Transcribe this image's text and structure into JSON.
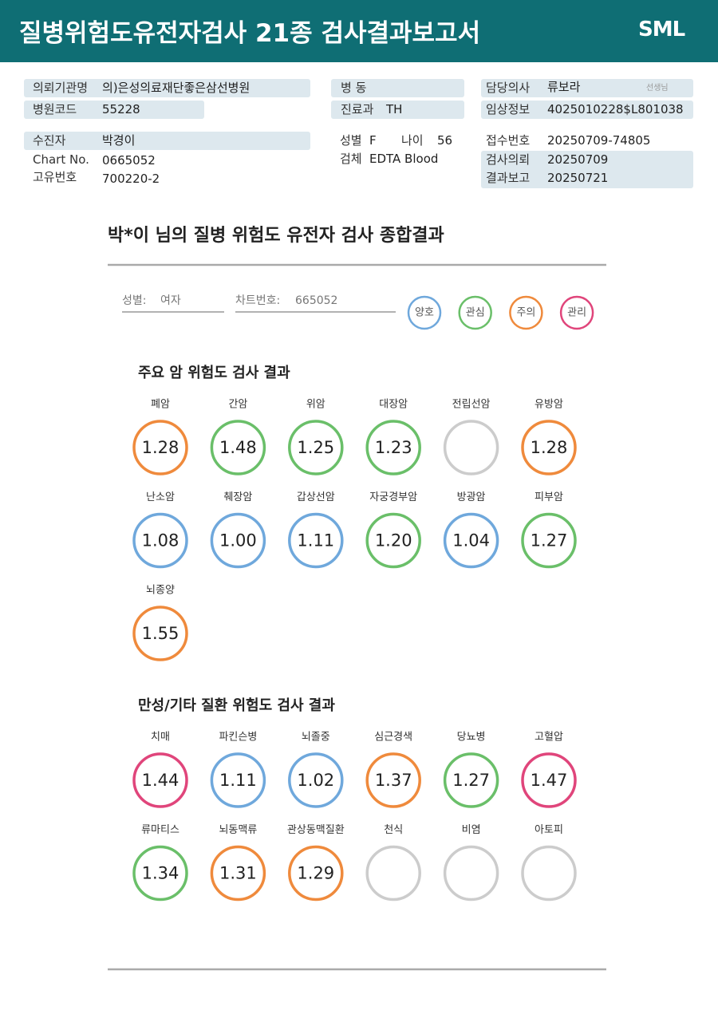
{
  "header": {
    "title": "질병위험도유전자검사 21종 검사결과보고서",
    "logo": "SML"
  },
  "info": {
    "institution": {
      "label": "의뢰기관명",
      "value": "의)은성의료재단좋은삼선병원"
    },
    "hospital_code": {
      "label": "병원코드",
      "value": "55228"
    },
    "patient": {
      "label": "수진자",
      "value": "박경이"
    },
    "chart_no": {
      "label": "Chart No.",
      "value": "0665052"
    },
    "unique_no": {
      "label": "고유번호",
      "value": "700220-2"
    },
    "ward": {
      "label": "병 동"
    },
    "department": {
      "label": "진료과",
      "value": "TH"
    },
    "sex": {
      "label": "성별",
      "value": "F"
    },
    "age": {
      "label": "나이",
      "value": "56"
    },
    "specimen": {
      "label": "검체",
      "value": "EDTA Blood"
    },
    "doctor": {
      "label": "담당의사",
      "value": "류보라",
      "suffix": "선생님"
    },
    "clinical": {
      "label": "임상정보",
      "value": "4025010228$L801038"
    },
    "receipt_no": {
      "label": "접수번호",
      "value": "20250709-74805"
    },
    "requested": {
      "label": "검사의뢰",
      "value": "20250709"
    },
    "reported": {
      "label": "결과보고",
      "value": "20250721"
    }
  },
  "report": {
    "title": "박*이 님의 질병 위험도 유전자 검사 종합결과",
    "summary": [
      {
        "label": "성별:",
        "value": "여자"
      },
      {
        "label": "차트번호:",
        "value": "665052"
      }
    ],
    "legend": [
      {
        "name": "양호",
        "color": "#6fa8dc"
      },
      {
        "name": "관심",
        "color": "#6abf69"
      },
      {
        "name": "주의",
        "color": "#ef8a3c"
      },
      {
        "name": "관리",
        "color": "#e0457b"
      }
    ],
    "groups": [
      {
        "title": "주요 암 위험도 검사 결과",
        "items": [
          {
            "name": "폐암",
            "value": "1.28",
            "color": "#ef8a3c"
          },
          {
            "name": "간암",
            "value": "1.48",
            "color": "#6abf69"
          },
          {
            "name": "위암",
            "value": "1.25",
            "color": "#6abf69"
          },
          {
            "name": "대장암",
            "value": "1.23",
            "color": "#6abf69"
          },
          {
            "name": "전립선암",
            "color": "#cccccc"
          },
          {
            "name": "유방암",
            "value": "1.28",
            "color": "#ef8a3c"
          },
          {
            "name": "난소암",
            "value": "1.08",
            "color": "#6fa8dc"
          },
          {
            "name": "췌장암",
            "value": "1.00",
            "color": "#6fa8dc"
          },
          {
            "name": "갑상선암",
            "value": "1.11",
            "color": "#6fa8dc"
          },
          {
            "name": "자궁경부암",
            "value": "1.20",
            "color": "#6abf69"
          },
          {
            "name": "방광암",
            "value": "1.04",
            "color": "#6fa8dc"
          },
          {
            "name": "피부암",
            "value": "1.27",
            "color": "#6abf69"
          },
          {
            "name": "뇌종양",
            "value": "1.55",
            "color": "#ef8a3c"
          }
        ]
      },
      {
        "title": "만성/기타 질환 위험도 검사 결과",
        "items": [
          {
            "name": "치매",
            "value": "1.44",
            "color": "#e0457b"
          },
          {
            "name": "파킨슨병",
            "value": "1.11",
            "color": "#6fa8dc"
          },
          {
            "name": "뇌졸중",
            "value": "1.02",
            "color": "#6fa8dc"
          },
          {
            "name": "심근경색",
            "value": "1.37",
            "color": "#ef8a3c"
          },
          {
            "name": "당뇨병",
            "value": "1.27",
            "color": "#6abf69"
          },
          {
            "name": "고혈압",
            "value": "1.47",
            "color": "#e0457b"
          },
          {
            "name": "류마티스",
            "value": "1.34",
            "color": "#6abf69"
          },
          {
            "name": "뇌동맥류",
            "value": "1.31",
            "color": "#ef8a3c"
          },
          {
            "name": "관상동맥질환",
            "value": "1.29",
            "color": "#ef8a3c"
          },
          {
            "name": "천식",
            "color": "#cccccc"
          },
          {
            "name": "비염",
            "color": "#cccccc"
          },
          {
            "name": "아토피",
            "color": "#cccccc"
          }
        ]
      }
    ]
  }
}
